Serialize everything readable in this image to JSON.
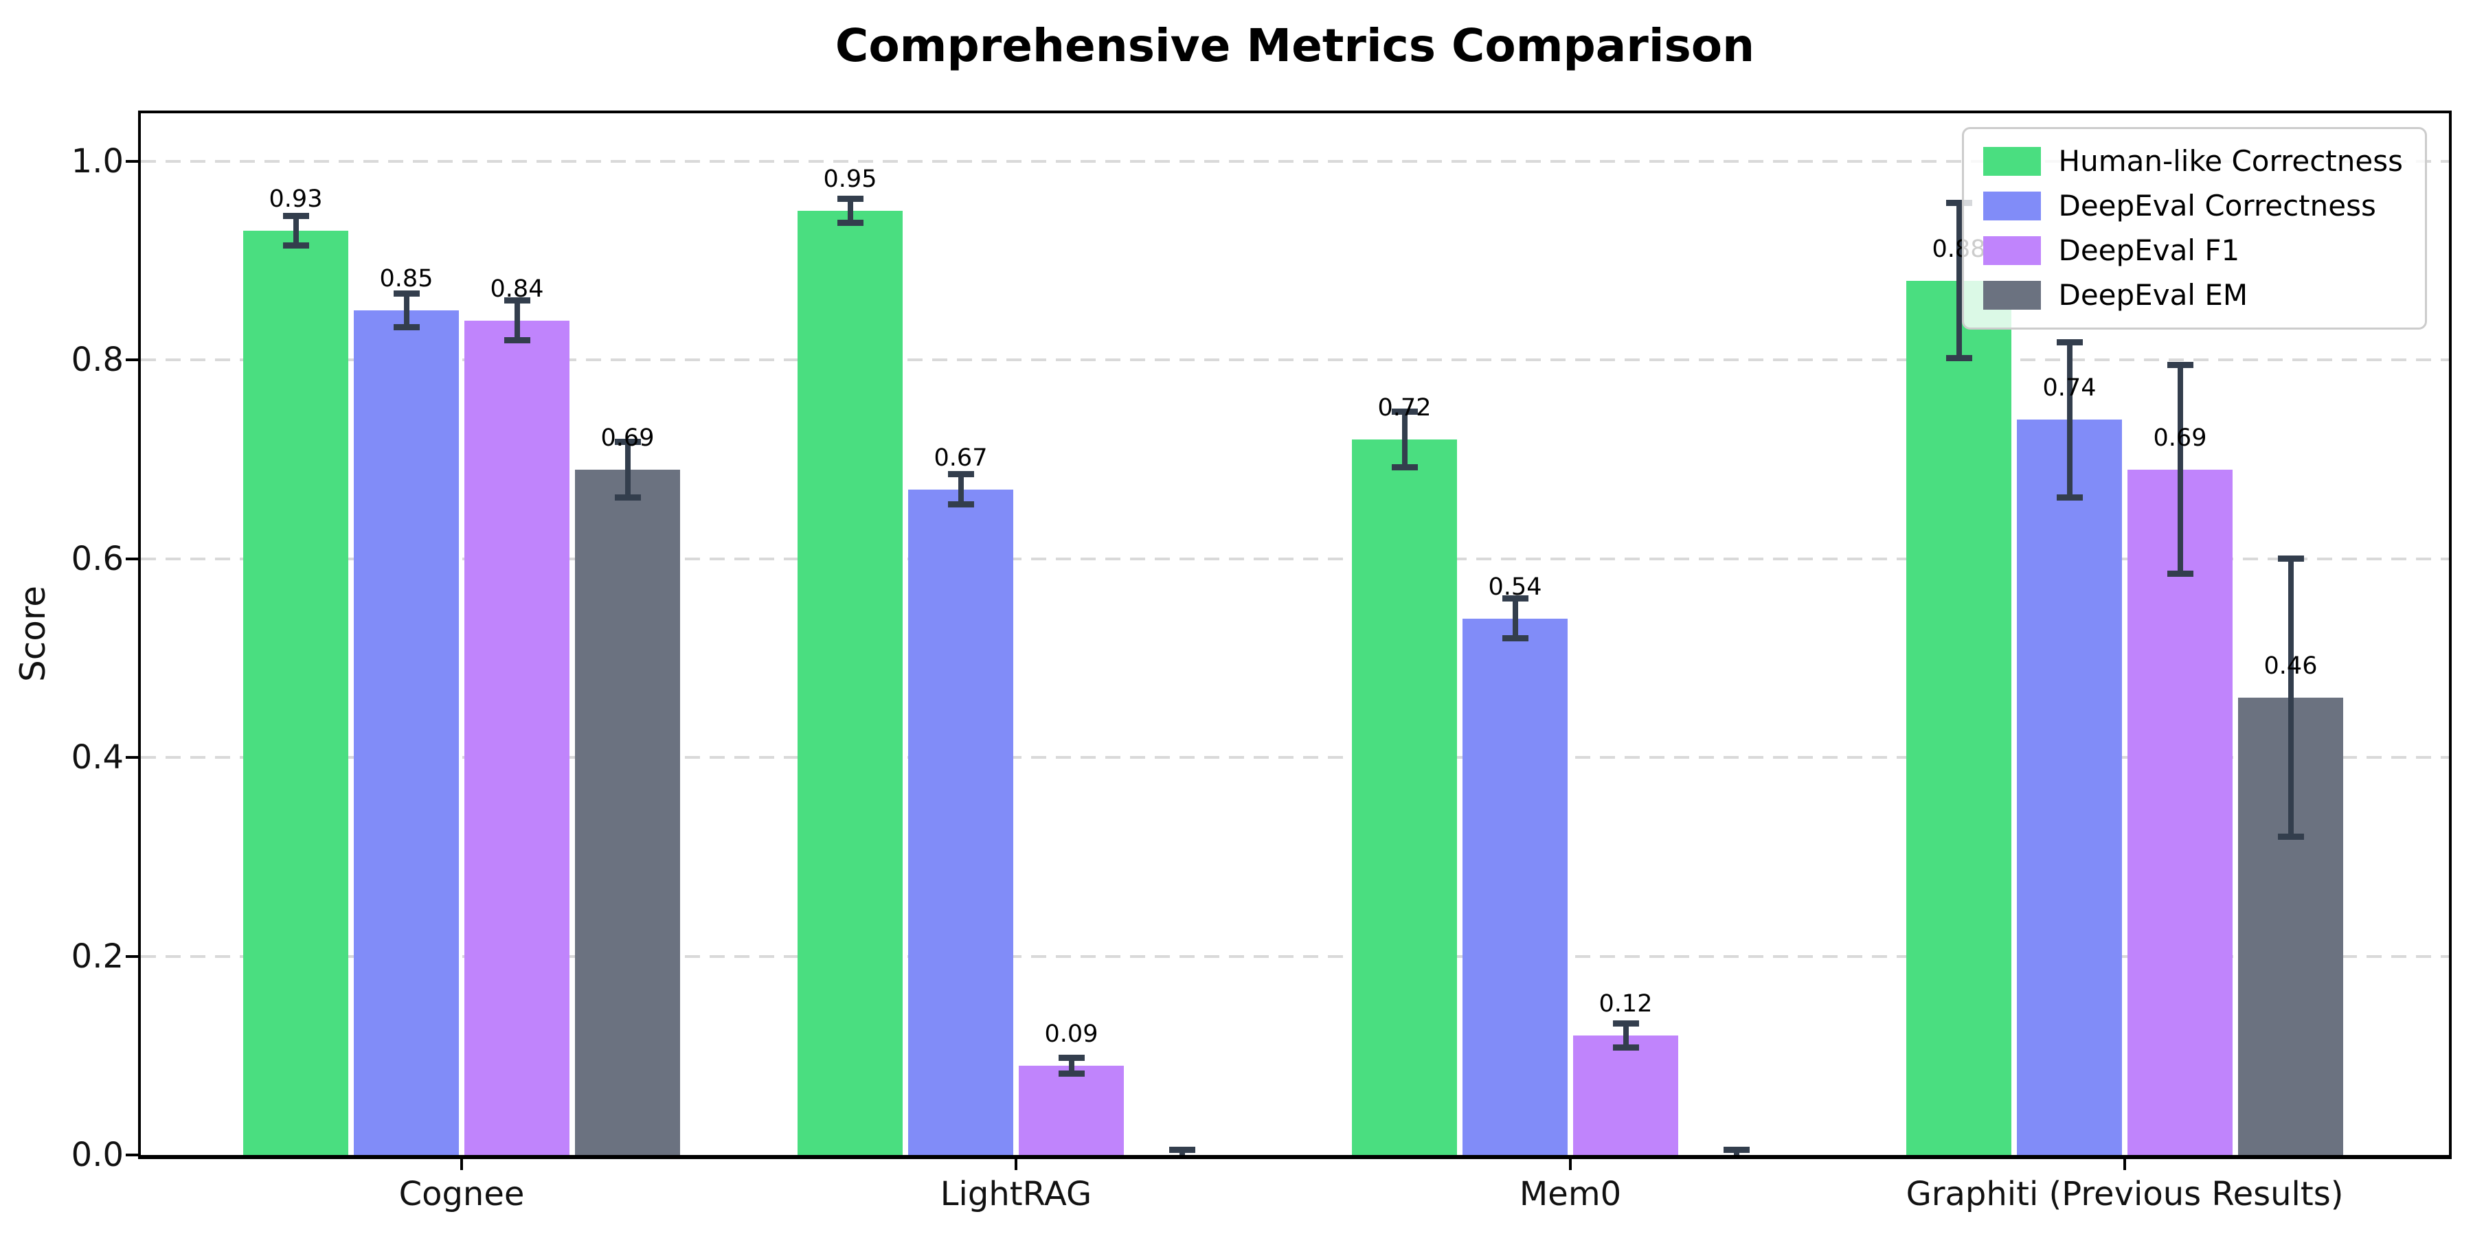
{
  "chart_data": {
    "type": "bar",
    "title": "Comprehensive Metrics Comparison",
    "ylabel": "Score",
    "xlabel": "",
    "categories": [
      "Cognee",
      "LightRAG",
      "Mem0",
      "Graphiti (Previous Results)"
    ],
    "series": [
      {
        "name": "Human-like Correctness",
        "color": "#4ade80",
        "values": [
          0.93,
          0.95,
          0.72,
          0.88
        ],
        "errors": [
          0.015,
          0.012,
          0.028,
          0.078
        ],
        "labels": [
          "0.93",
          "0.95",
          "0.72",
          "0.88"
        ]
      },
      {
        "name": "DeepEval Correctness",
        "color": "#818cf8",
        "values": [
          0.85,
          0.67,
          0.54,
          0.74
        ],
        "errors": [
          0.017,
          0.015,
          0.02,
          0.078
        ],
        "labels": [
          "0.85",
          "0.67",
          "0.54",
          "0.74"
        ]
      },
      {
        "name": "DeepEval F1",
        "color": "#c084fc",
        "values": [
          0.84,
          0.09,
          0.12,
          0.69
        ],
        "errors": [
          0.02,
          0.008,
          0.012,
          0.105
        ],
        "labels": [
          "0.84",
          "0.09",
          "0.12",
          "0.69"
        ]
      },
      {
        "name": "DeepEval EM",
        "color": "#6b7280",
        "values": [
          0.69,
          0.0,
          0.0,
          0.46
        ],
        "errors": [
          0.028,
          0.005,
          0.005,
          0.14
        ],
        "labels": [
          "0.69",
          "",
          "",
          "0.46"
        ]
      }
    ],
    "yticks": [
      0.0,
      0.2,
      0.4,
      0.6,
      0.8,
      1.0
    ],
    "ytick_labels": [
      "0.0",
      "0.2",
      "0.4",
      "0.6",
      "0.8",
      "1.0"
    ],
    "ylim": [
      0,
      1.048
    ],
    "grid": "horizontal-dashed",
    "legend_position": "upper right",
    "error_color": "#333e4d",
    "grid_color": "#d9d9d9",
    "axis_color": "#000000",
    "background_color": "#ffffff"
  }
}
